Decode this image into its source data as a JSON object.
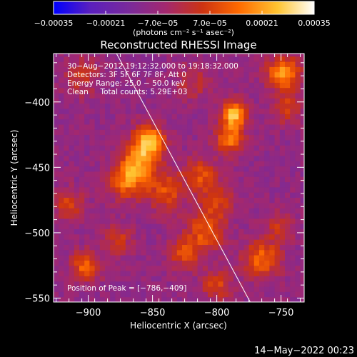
{
  "chart_data": {
    "type": "heatmap",
    "title": "Reconstructed RHESSI Image",
    "xlabel": "Heliocentric X (arcsec)",
    "ylabel": "Heliocentric Y (arcsec)",
    "xlim": [
      -927,
      -732
    ],
    "ylim": [
      -553,
      -363
    ],
    "xticks": [
      -900,
      -850,
      -800,
      -750
    ],
    "yticks": [
      -400,
      -450,
      -500,
      -550
    ],
    "xtick_labels": [
      "−900",
      "−850",
      "−800",
      "−750"
    ],
    "ytick_labels": [
      "−400",
      "−450",
      "−500",
      "−550"
    ],
    "colorbar": {
      "range": [
        -0.00035,
        0.00035
      ],
      "tick_values": [
        -0.00035,
        -0.00021,
        -7e-05,
        7e-05,
        0.00021,
        0.00035
      ],
      "tick_labels": [
        "−0.00035",
        "−0.00021",
        "−7.0e−05",
        "7.0e−05",
        "0.00021",
        "0.00035"
      ],
      "units_label": "(photons cm⁻² s⁻¹ asec⁻²)",
      "colors": [
        "#0000ff",
        "#5a1fbe",
        "#7a2a9a",
        "#a3286f",
        "#cc3312",
        "#ff6a00",
        "#ffc431",
        "#ffffff"
      ]
    },
    "annotations": {
      "time_range": "30−Aug−2012 19:12:32.000 to 19:18:32.000",
      "detectors": "Detectors: 3F 5F 6F 7F 8F, Att 0",
      "energy_range": "Energy Range: 25.0 − 50.0 keV",
      "method_counts": "Clean     Total counts: 5.29E+03",
      "peak": "Position of Peak = [−786,−409]"
    },
    "peak": [
      -786,
      -409
    ],
    "limb_line": {
      "x": [
        -878,
        -774
      ],
      "y": [
        -363,
        -553
      ]
    },
    "bright_sources": [
      {
        "x": -853,
        "y": -430,
        "value": 0.00032,
        "spread": 9
      },
      {
        "x": -862,
        "y": -448,
        "value": 0.00027,
        "spread": 10
      },
      {
        "x": -872,
        "y": -462,
        "value": 0.0002,
        "spread": 9
      },
      {
        "x": -840,
        "y": -468,
        "value": 0.00018,
        "spread": 11
      },
      {
        "x": -786,
        "y": -409,
        "value": 0.00035,
        "spread": 7
      },
      {
        "x": -790,
        "y": -428,
        "value": 0.00024,
        "spread": 8
      },
      {
        "x": -812,
        "y": -455,
        "value": 0.00018,
        "spread": 9
      },
      {
        "x": -800,
        "y": -475,
        "value": 0.00016,
        "spread": 9
      },
      {
        "x": -808,
        "y": -498,
        "value": 0.0002,
        "spread": 10
      },
      {
        "x": -825,
        "y": -515,
        "value": 0.00017,
        "spread": 9
      },
      {
        "x": -800,
        "y": -540,
        "value": 0.00016,
        "spread": 8
      },
      {
        "x": -765,
        "y": -520,
        "value": 0.00023,
        "spread": 10
      },
      {
        "x": -752,
        "y": -495,
        "value": 0.00013,
        "spread": 8
      },
      {
        "x": -748,
        "y": -378,
        "value": 0.0003,
        "spread": 9
      },
      {
        "x": -745,
        "y": -405,
        "value": 0.00015,
        "spread": 8
      },
      {
        "x": -902,
        "y": -525,
        "value": 0.00022,
        "spread": 8
      },
      {
        "x": -915,
        "y": -478,
        "value": 0.00016,
        "spread": 8
      },
      {
        "x": -905,
        "y": -380,
        "value": 0.00012,
        "spread": 10
      },
      {
        "x": -818,
        "y": -385,
        "value": 0.0001,
        "spread": 10
      },
      {
        "x": -877,
        "y": -505,
        "value": 0.00014,
        "spread": 8
      }
    ]
  },
  "footer": {
    "date_stamp": "14−May−2022 00:23"
  }
}
